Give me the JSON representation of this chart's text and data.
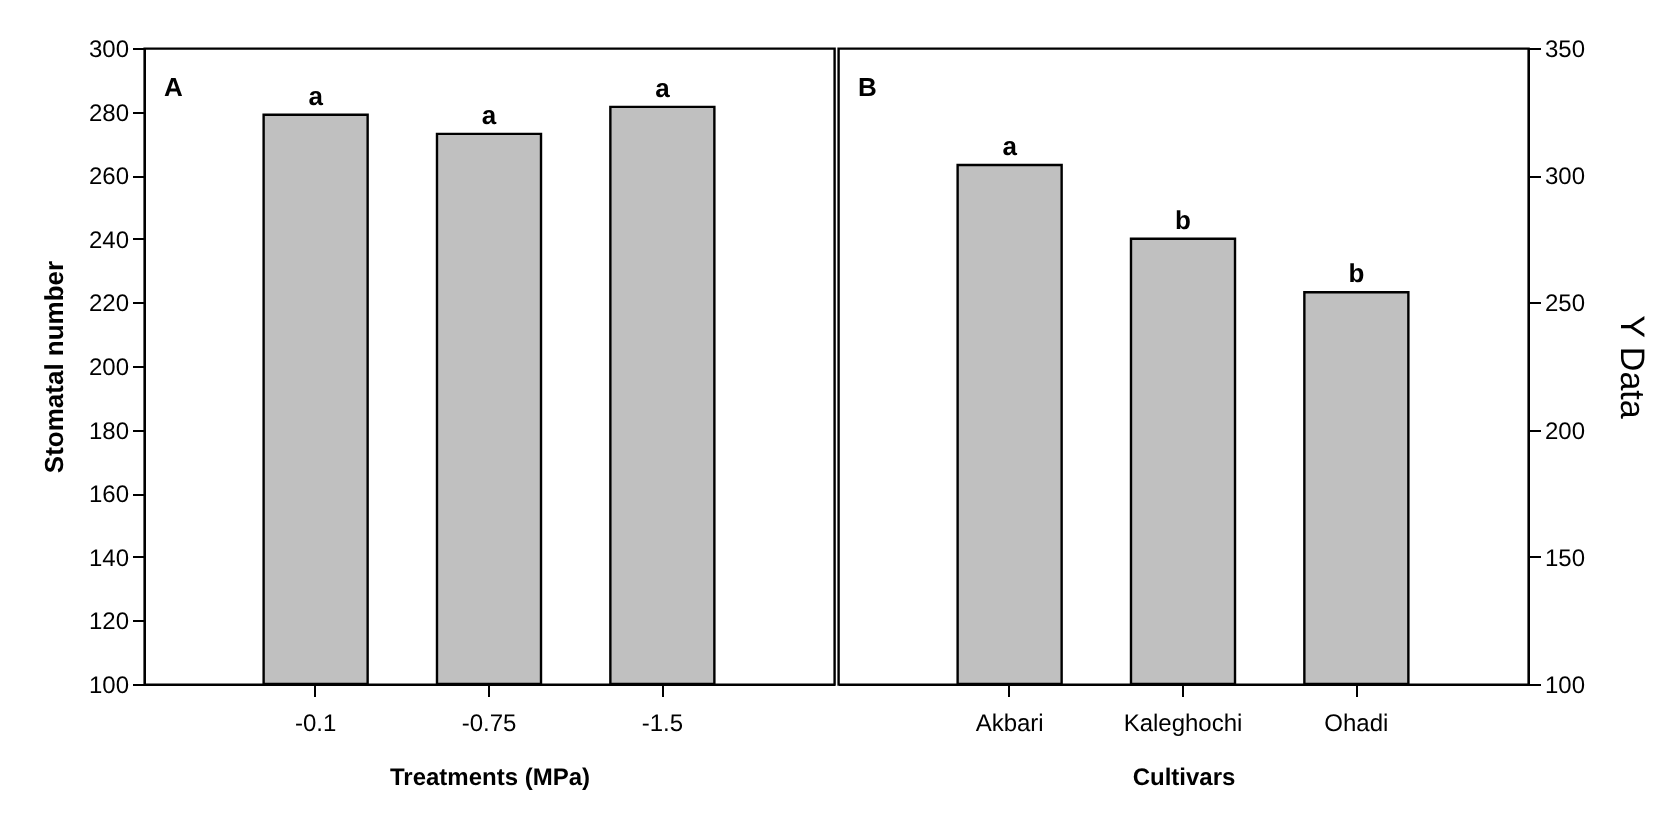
{
  "chart_data": [
    {
      "type": "bar",
      "xlabel": "Treatments (MPa)",
      "ylabel": "Stomatal number",
      "categories": [
        "-0.1",
        "-0.75",
        "-1.5"
      ],
      "series": [
        {
          "color": "#c0c0c0",
          "values": [
            279,
            273,
            281.5
          ]
        }
      ],
      "ylim": [
        100,
        300
      ],
      "yticks": [
        100,
        120,
        140,
        160,
        180,
        200,
        220,
        240,
        260,
        280,
        300
      ],
      "annotations": [
        "A",
        {
          "text": "a",
          "x": "-0.1",
          "y": 279
        },
        {
          "text": "a",
          "x": "-0.75",
          "y": 273
        },
        {
          "text": "a",
          "x": "-1.5",
          "y": 281.5
        }
      ]
    },
    {
      "type": "bar",
      "xlabel": "Cultivars",
      "y2label": "Y Data",
      "categories": [
        "Akbari",
        "Kaleghochi",
        "Ohadi"
      ],
      "series": [
        {
          "color": "#c0c0c0",
          "values": [
            304,
            275,
            254
          ],
          "axis": "y2"
        }
      ],
      "y2lim": [
        100,
        350
      ],
      "y2ticks": [
        100,
        150,
        200,
        250,
        300,
        350
      ],
      "annotations": [
        "B",
        "a",
        "b",
        "b"
      ]
    }
  ]
}
